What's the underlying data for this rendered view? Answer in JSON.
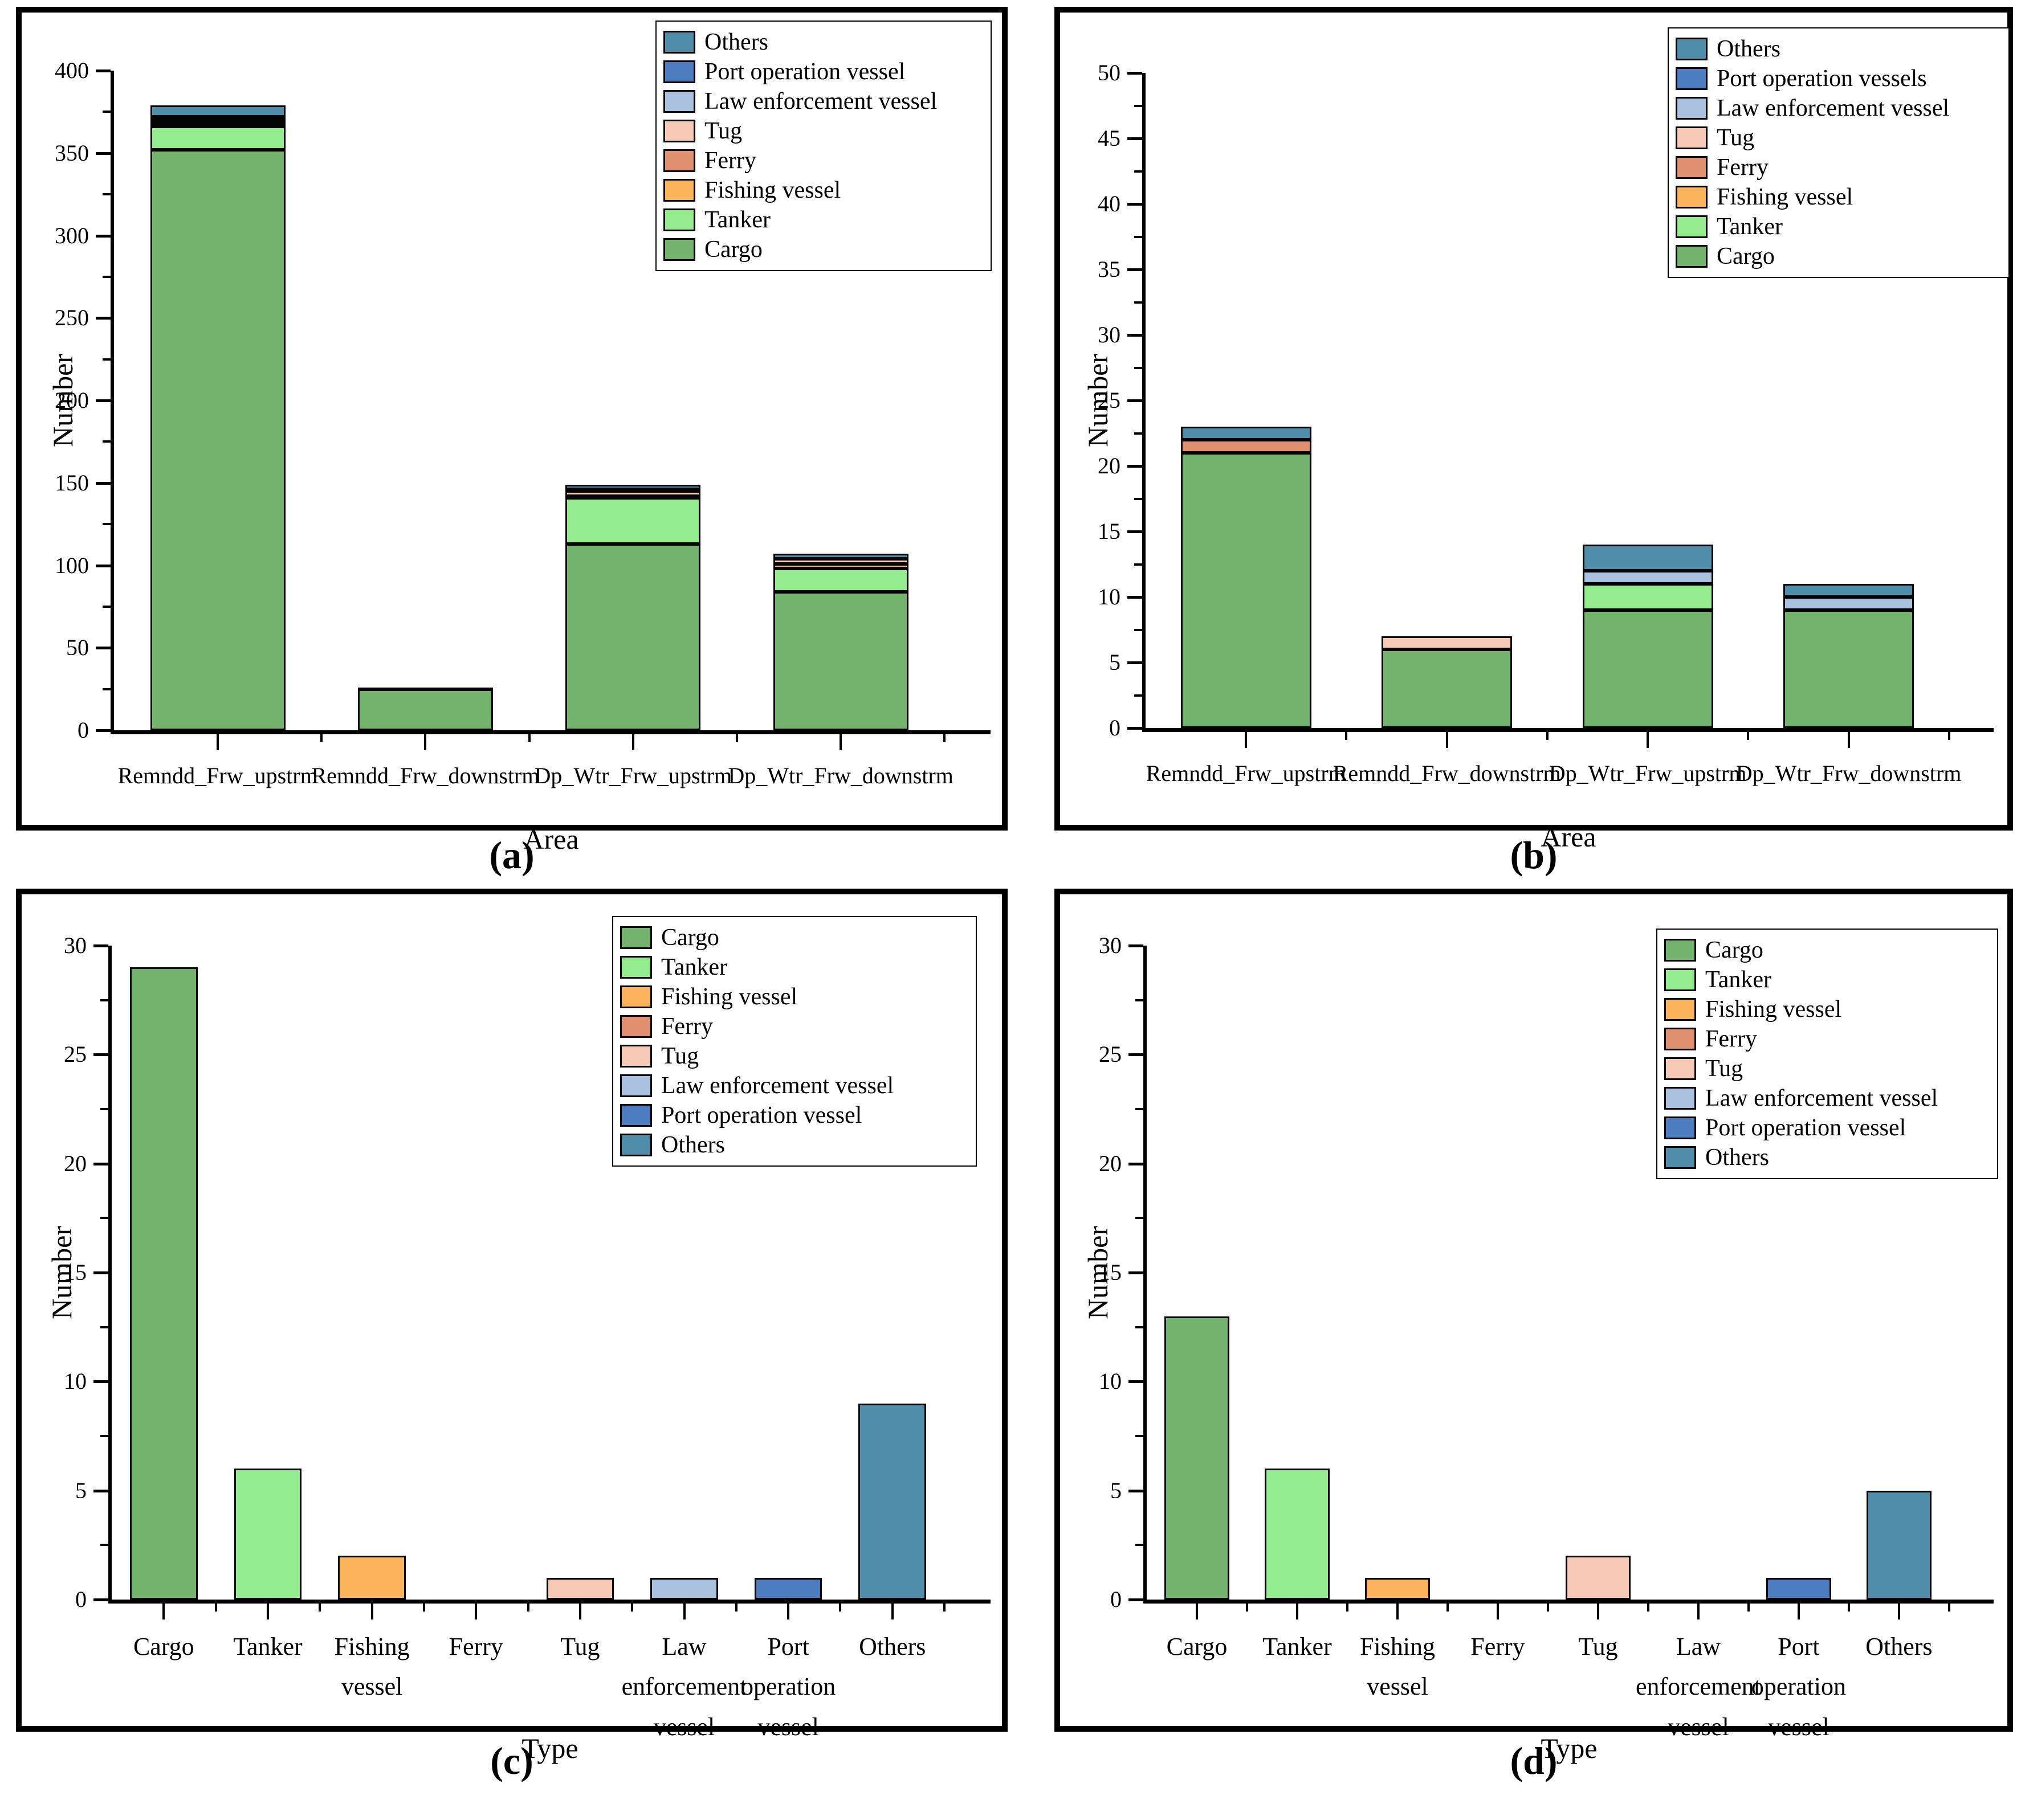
{
  "panel_labels": [
    "(a)",
    "(b)",
    "(c)",
    "(d)"
  ],
  "category_colors": {
    "Cargo": "#74b36e",
    "Tanker": "#94ec8e",
    "Fishing vessel": "#fbb45c",
    "Ferry": "#e09070",
    "Tug": "#f5c9b4",
    "Law enforcement vessel": "#a9c0de",
    "Port operation vessel": "#4d7cc0",
    "Port operation vessels": "#4d7cc0",
    "Others": "#4f8dab"
  },
  "chart_data": [
    {
      "panel": "a",
      "type": "bar-stacked",
      "title": "",
      "xlabel": "Area",
      "ylabel": "Number",
      "ylim": [
        0,
        400
      ],
      "ytick_step": 50,
      "grid": false,
      "legend_location": "upper right",
      "legend": [
        "Others",
        "Port operation vessel",
        "Law enforcement vessel",
        "Tug",
        "Ferry",
        "Fishing vessel",
        "Tanker",
        "Cargo"
      ],
      "categories": [
        "Remndd_Frw_upstrm",
        "Remndd_Frw_downstrm",
        "Dp_Wtr_Frw_upstrm",
        "Dp_Wtr_Frw_downstrm"
      ],
      "series": [
        {
          "name": "Cargo",
          "values": [
            352,
            25,
            113,
            84
          ]
        },
        {
          "name": "Tanker",
          "values": [
            14,
            0,
            28,
            14
          ]
        },
        {
          "name": "Fishing vessel",
          "values": [
            2,
            1,
            0,
            3
          ]
        },
        {
          "name": "Ferry",
          "values": [
            1,
            0,
            1,
            0
          ]
        },
        {
          "name": "Tug",
          "values": [
            1,
            0,
            3,
            3
          ]
        },
        {
          "name": "Law enforcement vessel",
          "values": [
            1,
            0,
            0,
            0
          ]
        },
        {
          "name": "Port operation vessel",
          "values": [
            1,
            0,
            1,
            0
          ]
        },
        {
          "name": "Others",
          "values": [
            7,
            0,
            3,
            3
          ]
        }
      ]
    },
    {
      "panel": "b",
      "type": "bar-stacked",
      "title": "",
      "xlabel": "Area",
      "ylabel": "Number",
      "ylim": [
        0,
        50
      ],
      "ytick_step": 5,
      "grid": false,
      "legend_location": "upper right",
      "legend": [
        "Others",
        "Port operation vessels",
        "Law enforcement vessel",
        "Tug",
        "Ferry",
        "Fishing vessel",
        "Tanker",
        "Cargo"
      ],
      "categories": [
        "Remndd_Frw_upstrm",
        "Remndd_Frw_downstrm",
        "Dp_Wtr_Frw_upstrm",
        "Dp_Wtr_Frw_downstrm"
      ],
      "series": [
        {
          "name": "Cargo",
          "values": [
            21,
            6,
            9,
            9
          ]
        },
        {
          "name": "Tanker",
          "values": [
            0,
            0,
            2,
            0
          ]
        },
        {
          "name": "Fishing vessel",
          "values": [
            0,
            0,
            0,
            0
          ]
        },
        {
          "name": "Ferry",
          "values": [
            1,
            0,
            0,
            0
          ]
        },
        {
          "name": "Tug",
          "values": [
            0,
            1,
            0,
            0
          ]
        },
        {
          "name": "Law enforcement vessel",
          "values": [
            0,
            0,
            1,
            1
          ]
        },
        {
          "name": "Port operation vessel",
          "values": [
            0,
            0,
            0,
            0
          ]
        },
        {
          "name": "Others",
          "values": [
            1,
            0,
            2,
            1
          ]
        }
      ]
    },
    {
      "panel": "c",
      "type": "bar",
      "title": "",
      "xlabel": "Type",
      "ylabel": "Number",
      "ylim": [
        0,
        30
      ],
      "ytick_step": 5,
      "grid": false,
      "legend_location": "upper right",
      "legend": [
        "Cargo",
        "Tanker",
        "Fishing vessel",
        "Ferry",
        "Tug",
        "Law enforcement vessel",
        "Port operation vessel",
        "Others"
      ],
      "categories": [
        "Cargo",
        "Tanker",
        "Fishing vessel",
        "Ferry",
        "Tug",
        "Law enforcement vessel",
        "Port operation vessel",
        "Others"
      ],
      "values": [
        29,
        6,
        2,
        0,
        1,
        1,
        1,
        9
      ]
    },
    {
      "panel": "d",
      "type": "bar",
      "title": "",
      "xlabel": "Type",
      "ylabel": "Number",
      "ylim": [
        0,
        30
      ],
      "ytick_step": 5,
      "grid": false,
      "legend_location": "upper right",
      "legend": [
        "Cargo",
        "Tanker",
        "Fishing vessel",
        "Ferry",
        "Tug",
        "Law enforcement vessel",
        "Port operation vessel",
        "Others"
      ],
      "categories": [
        "Cargo",
        "Tanker",
        "Fishing vessel",
        "Ferry",
        "Tug",
        "Law enforcement vessel",
        "Port operation vessel",
        "Others"
      ],
      "values": [
        13,
        6,
        1,
        0,
        2,
        0,
        1,
        5
      ]
    }
  ]
}
